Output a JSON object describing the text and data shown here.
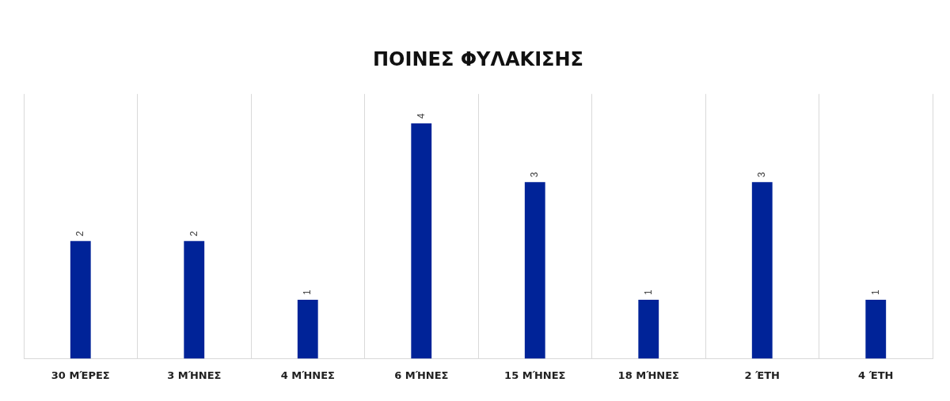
{
  "chart_data": {
    "type": "bar",
    "title": "ΠΟΙΝΕΣ ΦΥΛΑΚΙΣΗΣ",
    "categories": [
      "30 ΜΈΡΕΣ",
      "3 ΜΉΝΕΣ",
      "4 ΜΉΝΕΣ",
      "6 ΜΉΝΕΣ",
      "15 ΜΉΝΕΣ",
      "18 ΜΉΝΕΣ",
      "2 ΈΤΗ",
      "4 ΈΤΗ"
    ],
    "values": [
      2,
      2,
      1,
      4,
      3,
      1,
      3,
      1
    ],
    "color": "#002398",
    "data_labels": true,
    "grid": "x",
    "tick_labels": "x"
  }
}
